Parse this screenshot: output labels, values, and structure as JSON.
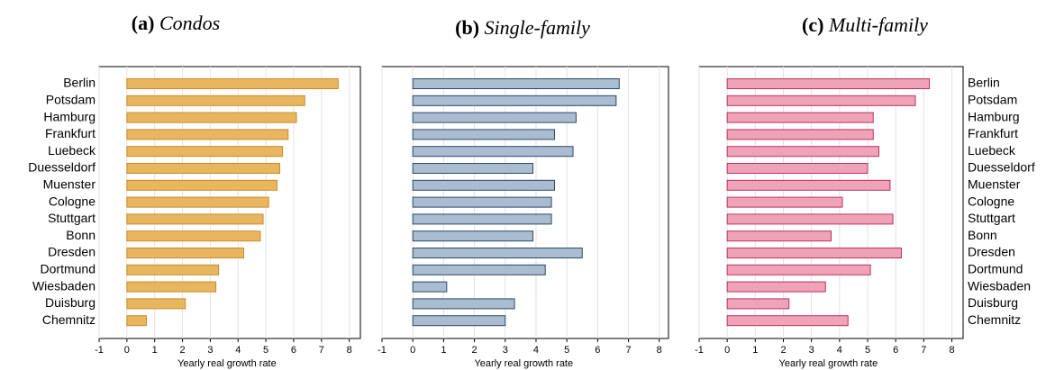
{
  "chart_data": [
    {
      "type": "bar",
      "panel": "(a)",
      "title": "Condos",
      "xlabel": "Yearly real growth rate",
      "categories": [
        "Berlin",
        "Potsdam",
        "Hamburg",
        "Frankfurt",
        "Luebeck",
        "Duesseldorf",
        "Muenster",
        "Cologne",
        "Stuttgart",
        "Bonn",
        "Dresden",
        "Dortmund",
        "Wiesbaden",
        "Duisburg",
        "Chemnitz"
      ],
      "values": [
        7.6,
        6.4,
        6.1,
        5.8,
        5.6,
        5.5,
        5.4,
        5.1,
        4.9,
        4.8,
        4.2,
        3.3,
        3.2,
        2.1,
        0.7
      ],
      "color": "#e9b660",
      "edgecolor": "#c98a2a",
      "xlim": [
        -1,
        8.4
      ],
      "xticks": [
        -1,
        0,
        1,
        2,
        3,
        4,
        5,
        6,
        7,
        8
      ],
      "grid": true
    },
    {
      "type": "bar",
      "panel": "(b)",
      "title": "Single-family",
      "xlabel": "Yearly real growth rate",
      "values": [
        6.7,
        6.6,
        5.3,
        4.6,
        5.2,
        3.9,
        4.6,
        4.5,
        4.5,
        3.9,
        5.5,
        4.3,
        1.1,
        3.3,
        3.0
      ],
      "color": "#a9bcd0",
      "edgecolor": "#2e4a66",
      "xlim": [
        -1,
        8.3
      ],
      "xticks": [
        -1,
        0,
        1,
        2,
        3,
        4,
        5,
        6,
        7,
        8
      ],
      "grid": true
    },
    {
      "type": "bar",
      "panel": "(c)",
      "title": "Multi-family",
      "xlabel": "Yearly real growth rate",
      "categories": [
        "Berlin",
        "Potsdam",
        "Hamburg",
        "Frankfurt",
        "Luebeck",
        "Duesseldorf",
        "Muenster",
        "Cologne",
        "Stuttgart",
        "Bonn",
        "Dresden",
        "Dortmund",
        "Wiesbaden",
        "Duisburg",
        "Chemnitz"
      ],
      "values": [
        7.2,
        6.7,
        5.2,
        5.2,
        5.4,
        5.0,
        5.8,
        4.1,
        5.9,
        3.7,
        6.2,
        5.1,
        3.5,
        2.2,
        4.3
      ],
      "color": "#eea3b8",
      "edgecolor": "#c0325a",
      "xlim": [
        -1,
        8.4
      ],
      "xticks": [
        -1,
        0,
        1,
        2,
        3,
        4,
        5,
        6,
        7,
        8
      ],
      "grid": true
    }
  ]
}
